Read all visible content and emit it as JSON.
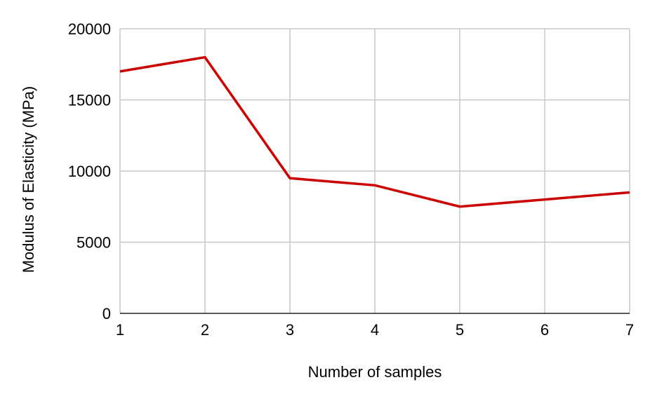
{
  "chart_data": {
    "type": "line",
    "title": "",
    "xlabel": "Number of samples",
    "ylabel": "Modulus of Elasticity (MPa)",
    "x": [
      1,
      2,
      3,
      4,
      5,
      6,
      7
    ],
    "series": [
      {
        "values": [
          17000,
          18000,
          9500,
          9000,
          7500,
          8000,
          8500
        ],
        "color": "#cc0000"
      }
    ],
    "xlim": [
      1,
      7
    ],
    "ylim": [
      0,
      20000
    ],
    "yticks": [
      0,
      5000,
      10000,
      15000,
      20000
    ],
    "xticks": [
      1,
      2,
      3,
      4,
      5,
      6,
      7
    ],
    "grid": true,
    "legend": "none"
  }
}
